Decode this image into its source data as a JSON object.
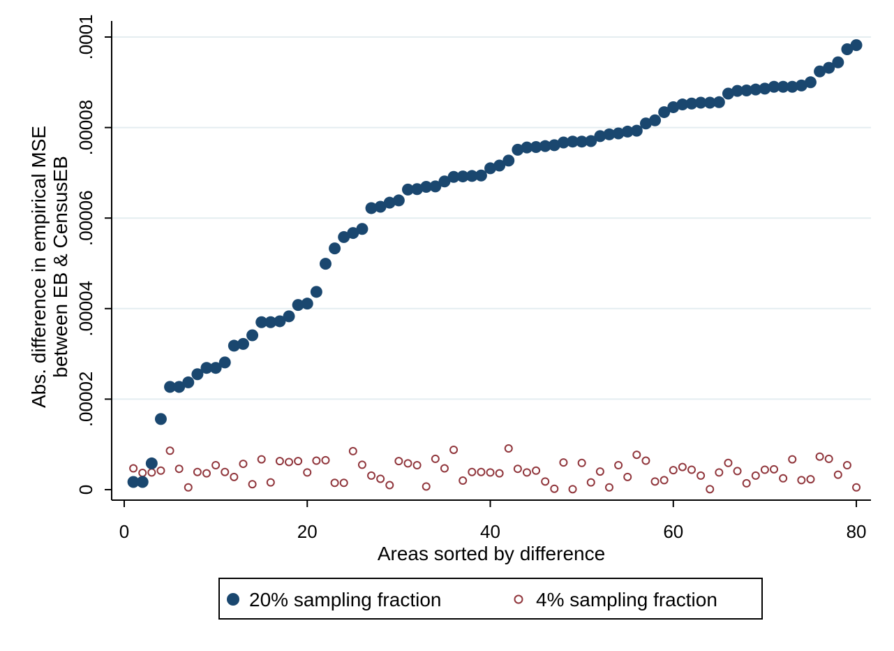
{
  "chart_data": {
    "type": "scatter",
    "title": "",
    "xlabel": "Areas sorted by difference",
    "ylabel_lines": [
      "Abs. difference in empirical MSE",
      "between EB & CensusEB"
    ],
    "xlim": [
      0,
      80
    ],
    "ylim": [
      0,
      0.0001
    ],
    "xticks": [
      0,
      20,
      40,
      60,
      80
    ],
    "xtick_labels": [
      "0",
      "20",
      "40",
      "60",
      "80"
    ],
    "yticks": [
      0,
      2e-05,
      4e-05,
      6e-05,
      8e-05,
      0.0001
    ],
    "ytick_labels": [
      "0",
      ".00002",
      ".00004",
      ".00006",
      ".00008",
      ".0001"
    ],
    "grid": "horizontal",
    "legend_position": "bottom",
    "x": [
      1,
      2,
      3,
      4,
      5,
      6,
      7,
      8,
      9,
      10,
      11,
      12,
      13,
      14,
      15,
      16,
      17,
      18,
      19,
      20,
      21,
      22,
      23,
      24,
      25,
      26,
      27,
      28,
      29,
      30,
      31,
      32,
      33,
      34,
      35,
      36,
      37,
      38,
      39,
      40,
      41,
      42,
      43,
      44,
      45,
      46,
      47,
      48,
      49,
      50,
      51,
      52,
      53,
      54,
      55,
      56,
      57,
      58,
      59,
      60,
      61,
      62,
      63,
      64,
      65,
      66,
      67,
      68,
      69,
      70,
      71,
      72,
      73,
      74,
      75,
      76,
      77,
      78,
      79,
      80
    ],
    "series": [
      {
        "name": "20% sampling fraction",
        "marker": "filled-circle",
        "color": "#1a476f",
        "values": [
          1.7e-06,
          1.7e-06,
          5.8e-06,
          1.56e-05,
          2.27e-05,
          2.27e-05,
          2.37e-05,
          2.55e-05,
          2.69e-05,
          2.69e-05,
          2.81e-05,
          3.18e-05,
          3.22e-05,
          3.41e-05,
          3.7e-05,
          3.7e-05,
          3.72e-05,
          3.83e-05,
          4.08e-05,
          4.11e-05,
          4.37e-05,
          4.99e-05,
          5.33e-05,
          5.58e-05,
          5.67e-05,
          5.76e-05,
          6.22e-05,
          6.25e-05,
          6.34e-05,
          6.39e-05,
          6.63e-05,
          6.64e-05,
          6.69e-05,
          6.7e-05,
          6.81e-05,
          6.91e-05,
          6.92e-05,
          6.93e-05,
          6.94e-05,
          7.1e-05,
          7.16e-05,
          7.27e-05,
          7.51e-05,
          7.56e-05,
          7.57e-05,
          7.59e-05,
          7.61e-05,
          7.67e-05,
          7.69e-05,
          7.69e-05,
          7.7e-05,
          7.81e-05,
          7.85e-05,
          7.87e-05,
          7.91e-05,
          7.93e-05,
          8.09e-05,
          8.16e-05,
          8.34e-05,
          8.45e-05,
          8.51e-05,
          8.53e-05,
          8.55e-05,
          8.55e-05,
          8.56e-05,
          8.75e-05,
          8.81e-05,
          8.82e-05,
          8.84e-05,
          8.86e-05,
          8.9e-05,
          8.9e-05,
          8.9e-05,
          8.93e-05,
          9e-05,
          9.24e-05,
          9.32e-05,
          9.44e-05,
          9.73e-05,
          9.82e-05
        ]
      },
      {
        "name": "4% sampling fraction",
        "marker": "hollow-circle",
        "color": "#90353b",
        "values": [
          4.7e-06,
          3.7e-06,
          3.8e-06,
          4.2e-06,
          8.6e-06,
          4.6e-06,
          5e-07,
          3.9e-06,
          3.6e-06,
          5.4e-06,
          3.9e-06,
          2.8e-06,
          5.7e-06,
          1.2e-06,
          6.7e-06,
          1.6e-06,
          6.3e-06,
          6.1e-06,
          6.3e-06,
          3.8e-06,
          6.4e-06,
          6.5e-06,
          1.5e-06,
          1.5e-06,
          8.5e-06,
          5.5e-06,
          3.1e-06,
          2.4e-06,
          1e-06,
          6.3e-06,
          5.8e-06,
          5.4e-06,
          7e-07,
          6.8e-06,
          4.7e-06,
          8.8e-06,
          2e-06,
          3.9e-06,
          3.9e-06,
          3.8e-06,
          3.6e-06,
          9.1e-06,
          4.6e-06,
          3.8e-06,
          4.2e-06,
          1.8e-06,
          2e-07,
          6e-06,
          1e-07,
          5.9e-06,
          1.6e-06,
          4e-06,
          5e-07,
          5.4e-06,
          2.8e-06,
          7.7e-06,
          6.4e-06,
          1.8e-06,
          2.1e-06,
          4.3e-06,
          5e-06,
          4.4e-06,
          3.1e-06,
          1e-07,
          3.8e-06,
          5.9e-06,
          4.1e-06,
          1.4e-06,
          3.1e-06,
          4.4e-06,
          4.5e-06,
          2.5e-06,
          6.7e-06,
          2.1e-06,
          2.3e-06,
          7.3e-06,
          6.8e-06,
          3.3e-06,
          5.4e-06,
          5e-07
        ]
      }
    ]
  }
}
